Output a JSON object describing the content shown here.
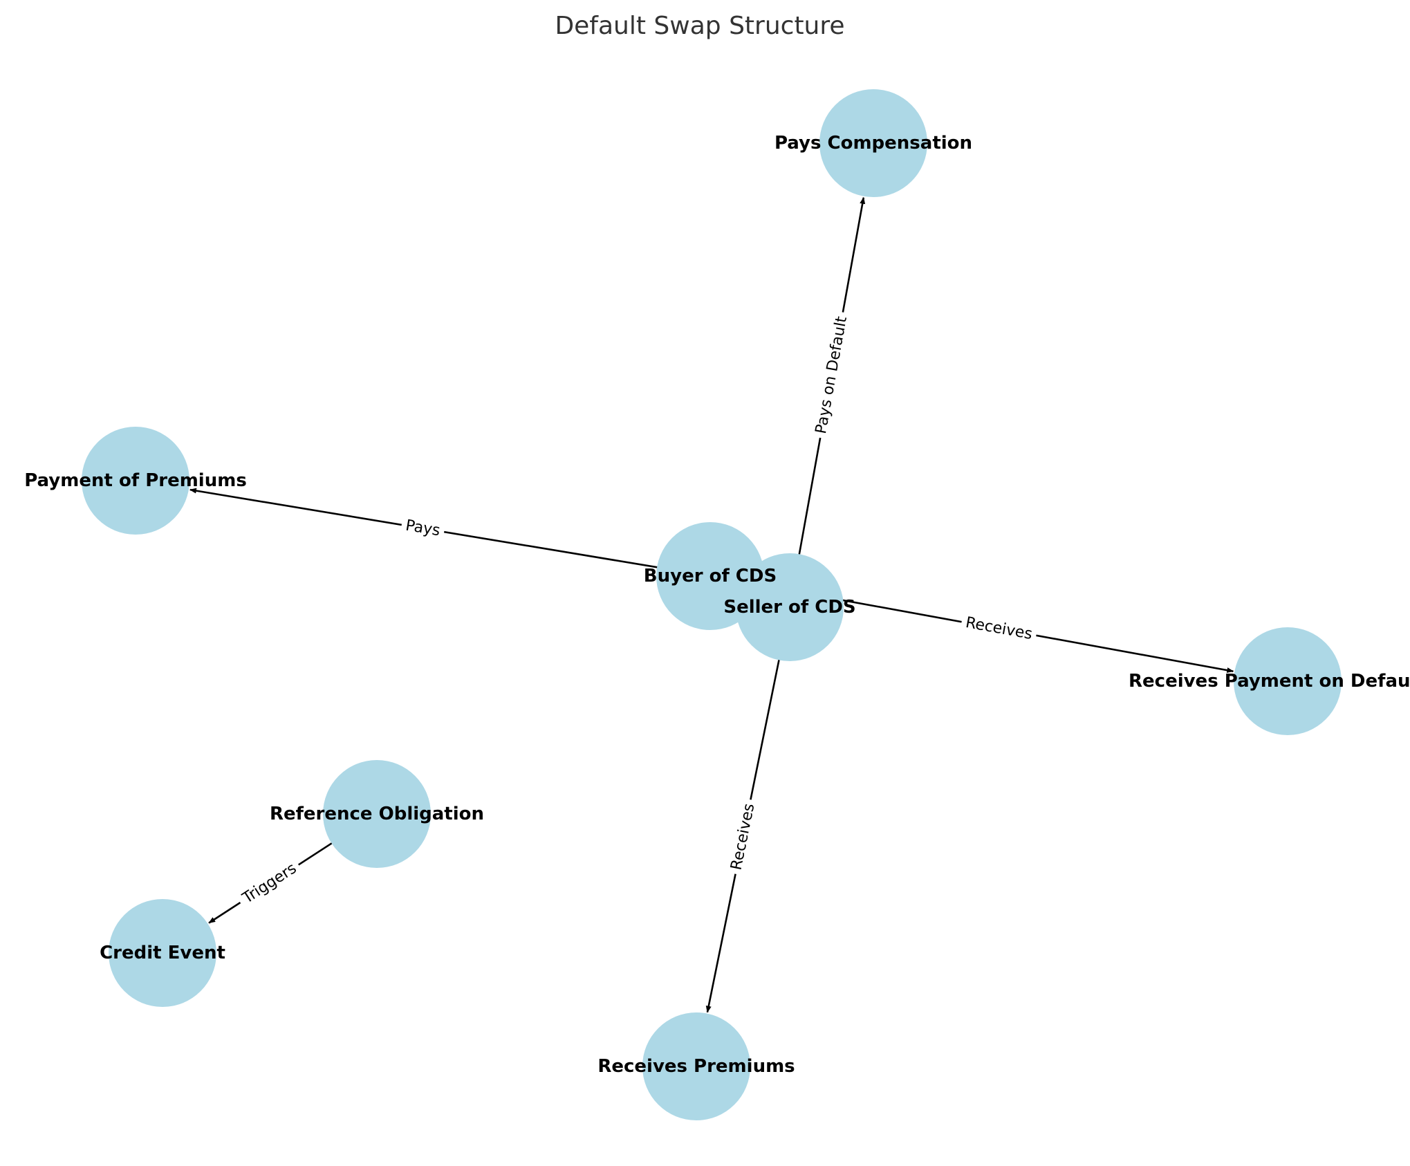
{
  "title": "Default Swap Structure",
  "colors": {
    "node_fill": "#add8e6",
    "edge": "#000000",
    "title": "#333333"
  },
  "nodes": [
    {
      "id": "buyer",
      "label": "Buyer of CDS"
    },
    {
      "id": "seller",
      "label": "Seller of CDS"
    },
    {
      "id": "pays_comp",
      "label": "Pays Compensation"
    },
    {
      "id": "payment_premiums",
      "label": "Payment of Premiums"
    },
    {
      "id": "receives_payment",
      "label": "Receives Payment on Default"
    },
    {
      "id": "reference",
      "label": "Reference Obligation"
    },
    {
      "id": "credit_event",
      "label": "Credit Event"
    },
    {
      "id": "receives_premiums",
      "label": "Receives Premiums"
    }
  ],
  "edges": [
    {
      "from": "buyer",
      "to": "payment_premiums",
      "label": "Pays"
    },
    {
      "from": "seller",
      "to": "pays_comp",
      "label": "Pays on Default"
    },
    {
      "from": "buyer",
      "to": "receives_payment",
      "label": "Receives"
    },
    {
      "from": "seller",
      "to": "receives_premiums",
      "label": "Receives"
    },
    {
      "from": "reference",
      "to": "credit_event",
      "label": "Triggers"
    }
  ]
}
